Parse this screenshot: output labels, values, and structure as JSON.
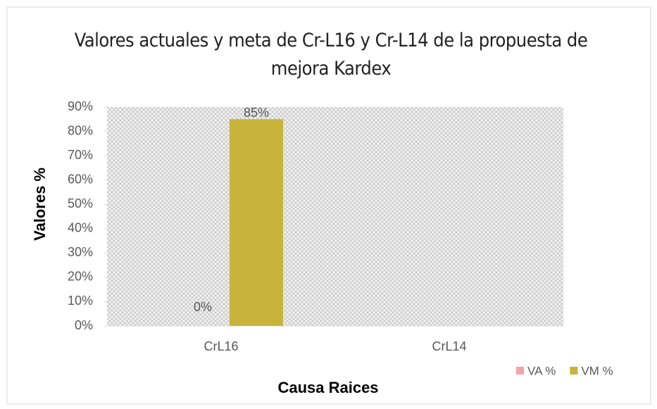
{
  "chart_data": {
    "type": "bar",
    "title": "Valores actuales y meta de Cr-L16 y Cr-L14 de la propuesta de mejora Kardex",
    "x_label": "Causa Raices",
    "y_label": "Valores %",
    "categories": [
      "CrL16",
      "CrL14"
    ],
    "series": [
      {
        "name": "VA %",
        "color": "#f4a3ab",
        "values": [
          0,
          null
        ],
        "value_labels": [
          "0%",
          null
        ]
      },
      {
        "name": "VM %",
        "color": "#c8b43a",
        "values": [
          85,
          null
        ],
        "value_labels": [
          "85%",
          null
        ]
      }
    ],
    "ylim": [
      0,
      90
    ],
    "yticks": [
      {
        "value": 0,
        "label": "0%"
      },
      {
        "value": 10,
        "label": "10%"
      },
      {
        "value": 20,
        "label": "20%"
      },
      {
        "value": 30,
        "label": "30%"
      },
      {
        "value": 40,
        "label": "40%"
      },
      {
        "value": 50,
        "label": "50%"
      },
      {
        "value": 60,
        "label": "60%"
      },
      {
        "value": 70,
        "label": "70%"
      },
      {
        "value": 80,
        "label": "80%"
      },
      {
        "value": 90,
        "label": "90%"
      }
    ],
    "legend": "bottom-right"
  }
}
